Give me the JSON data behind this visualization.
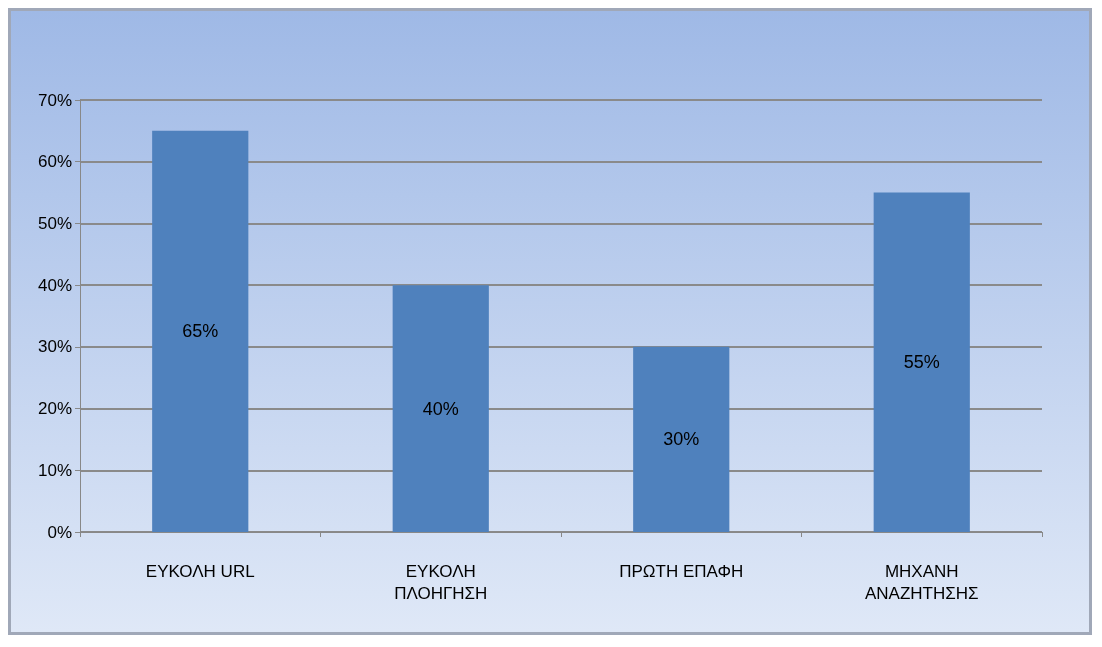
{
  "chart_data": {
    "type": "bar",
    "categories": [
      "ΕΥΚΟΛΗ URL",
      "ΕΥΚΟΛΗ ΠΛΟΗΓΗΣΗ",
      "ΠΡΩΤΗ ΕΠΑΦΗ",
      "ΜΗΧΑΝΗ ΑΝΑΖΗΤΗΣΗΣ"
    ],
    "values": [
      65,
      40,
      30,
      55
    ],
    "value_labels": [
      "65%",
      "40%",
      "30%",
      "55%"
    ],
    "color": "#4f81bd",
    "ylim": [
      0,
      70
    ],
    "yticks": [
      {
        "value": 0,
        "label": "0%"
      },
      {
        "value": 10,
        "label": "10%"
      },
      {
        "value": 20,
        "label": "20%"
      },
      {
        "value": 30,
        "label": "30%"
      },
      {
        "value": 40,
        "label": "40%"
      },
      {
        "value": 50,
        "label": "50%"
      },
      {
        "value": 60,
        "label": "60%"
      },
      {
        "value": 70,
        "label": "70%"
      }
    ],
    "grid": "y"
  }
}
